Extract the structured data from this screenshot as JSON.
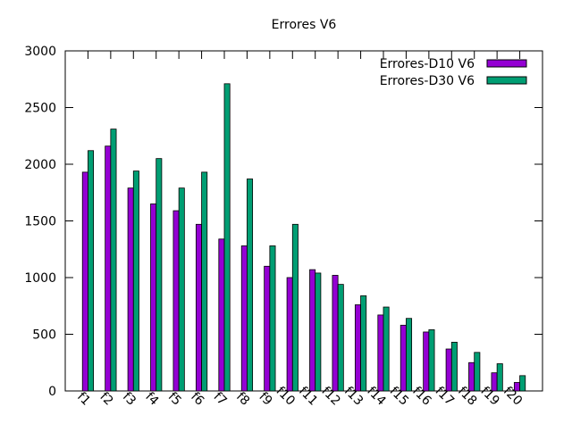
{
  "chart_data": {
    "type": "bar",
    "title": "Errores V6",
    "xlabel": "",
    "ylabel": "",
    "ylim": [
      0,
      3000
    ],
    "yticks": [
      0,
      500,
      1000,
      1500,
      2000,
      2500,
      3000
    ],
    "grid": false,
    "legend_position": "top-right",
    "categories": [
      "f1",
      "f2",
      "f3",
      "f4",
      "f5",
      "f6",
      "f7",
      "f8",
      "f9",
      "f10",
      "f11",
      "f12",
      "f13",
      "f14",
      "f15",
      "f16",
      "f17",
      "f18",
      "f19",
      "f20"
    ],
    "series": [
      {
        "name": "Errores-D10 V6",
        "color": "#9400d3",
        "values": [
          1930,
          2160,
          1790,
          1650,
          1590,
          1470,
          1340,
          1280,
          1100,
          1000,
          1070,
          1020,
          760,
          670,
          580,
          520,
          370,
          250,
          160,
          75
        ]
      },
      {
        "name": "Errores-D30 V6",
        "color": "#009e73",
        "values": [
          2120,
          2310,
          1940,
          2050,
          1790,
          1930,
          2710,
          1870,
          1280,
          1470,
          1040,
          940,
          840,
          740,
          640,
          540,
          430,
          340,
          240,
          135
        ]
      }
    ]
  }
}
